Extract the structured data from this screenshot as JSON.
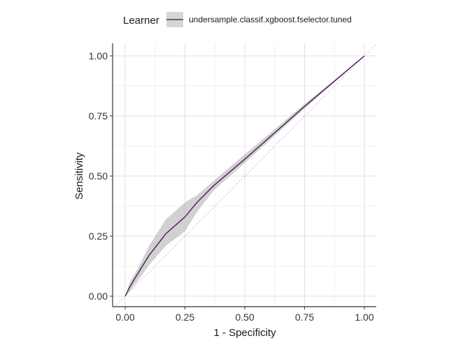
{
  "chart_data": {
    "type": "line",
    "title": "",
    "xlabel": "1 - Specificity",
    "ylabel": "Sensitivity",
    "xlim": [
      0,
      1
    ],
    "ylim": [
      0,
      1
    ],
    "x_ticks": [
      "0.00",
      "0.25",
      "0.50",
      "0.75",
      "1.00"
    ],
    "y_ticks": [
      "0.00",
      "0.25",
      "0.50",
      "0.75",
      "1.00"
    ],
    "grid": true,
    "reference_line": "diagonal-dotted",
    "legend": {
      "title": "Learner",
      "position": "top",
      "entries": [
        "undersample.classif.xgboost.fselector.tuned"
      ]
    },
    "series": [
      {
        "name": "undersample.classif.xgboost.fselector.tuned",
        "color": "#4b0a5a",
        "band_color": "#bdbdbd",
        "points": [
          {
            "x": 0.0,
            "y": 0.0,
            "lo": 0.0,
            "hi": 0.0
          },
          {
            "x": 0.02,
            "y": 0.04,
            "lo": 0.02,
            "hi": 0.06
          },
          {
            "x": 0.05,
            "y": 0.09,
            "lo": 0.06,
            "hi": 0.11
          },
          {
            "x": 0.1,
            "y": 0.17,
            "lo": 0.13,
            "hi": 0.21
          },
          {
            "x": 0.17,
            "y": 0.26,
            "lo": 0.21,
            "hi": 0.32
          },
          {
            "x": 0.25,
            "y": 0.33,
            "lo": 0.27,
            "hi": 0.39
          },
          {
            "x": 0.3,
            "y": 0.39,
            "lo": 0.35,
            "hi": 0.42
          },
          {
            "x": 0.37,
            "y": 0.46,
            "lo": 0.44,
            "hi": 0.48
          },
          {
            "x": 0.5,
            "y": 0.57,
            "lo": 0.555,
            "hi": 0.59
          },
          {
            "x": 0.75,
            "y": 0.79,
            "lo": 0.78,
            "hi": 0.8
          },
          {
            "x": 1.0,
            "y": 1.0,
            "lo": 1.0,
            "hi": 1.0
          }
        ]
      }
    ]
  }
}
